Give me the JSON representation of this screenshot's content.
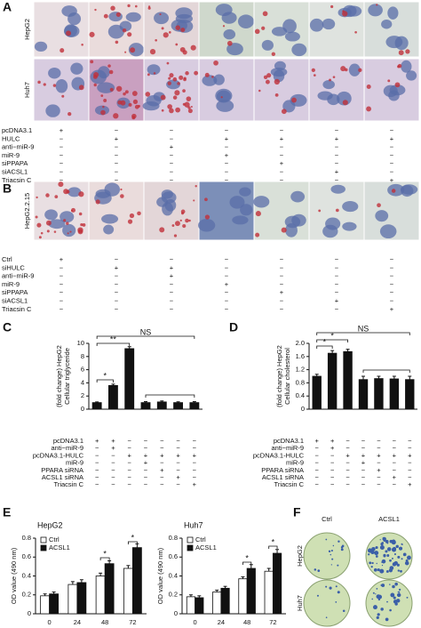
{
  "panels": {
    "A": {
      "label": "A",
      "rows": [
        "HepG2",
        "Huh7"
      ],
      "treatments": [
        {
          "label": "pcDNA3.1",
          "marks": [
            "+",
            "−",
            "−",
            "−",
            "−",
            "−",
            "−"
          ]
        },
        {
          "label": "HULC",
          "marks": [
            "−",
            "+",
            "−",
            "+",
            "+",
            "+",
            "+"
          ]
        },
        {
          "label": "anti−miR-9",
          "marks": [
            "−",
            "−",
            "+",
            "−",
            "−",
            "−",
            "−"
          ]
        },
        {
          "label": "miR-9",
          "marks": [
            "−",
            "−",
            "−",
            "+",
            "−",
            "−",
            "−"
          ]
        },
        {
          "label": "siPPAPA",
          "marks": [
            "−",
            "−",
            "−",
            "−",
            "+",
            "−",
            "−"
          ]
        },
        {
          "label": "siACSL1",
          "marks": [
            "−",
            "−",
            "−",
            "−",
            "−",
            "+",
            "−"
          ]
        },
        {
          "label": "Triacsin C",
          "marks": [
            "−",
            "−",
            "−",
            "−",
            "−",
            "−",
            "+"
          ]
        }
      ]
    },
    "B": {
      "label": "B",
      "rows": [
        "HepG2.2.15"
      ],
      "treatments": [
        {
          "label": "Ctrl",
          "marks": [
            "+",
            "−",
            "−",
            "−",
            "−",
            "−",
            "−"
          ]
        },
        {
          "label": "siHULC",
          "marks": [
            "−",
            "+",
            "+",
            "−",
            "−",
            "−",
            "−"
          ]
        },
        {
          "label": "anti−miR-9",
          "marks": [
            "−",
            "−",
            "+",
            "−",
            "−",
            "−",
            "−"
          ]
        },
        {
          "label": "miR-9",
          "marks": [
            "−",
            "−",
            "−",
            "+",
            "−",
            "−",
            "−"
          ]
        },
        {
          "label": "siPPAPA",
          "marks": [
            "−",
            "−",
            "−",
            "−",
            "+",
            "−",
            "−"
          ]
        },
        {
          "label": "siACSL1",
          "marks": [
            "−",
            "−",
            "−",
            "−",
            "−",
            "+",
            "−"
          ]
        },
        {
          "label": "Triacsin C",
          "marks": [
            "−",
            "−",
            "−",
            "−",
            "−",
            "−",
            "+"
          ]
        }
      ]
    },
    "C": {
      "label": "C"
    },
    "D": {
      "label": "D"
    },
    "E": {
      "label": "E"
    },
    "F": {
      "label": "F",
      "columns": [
        "Ctrl",
        "ACSL1"
      ],
      "rows": [
        "HepG2",
        "Huh7"
      ]
    }
  },
  "chart_data": [
    {
      "type": "bar",
      "ylabel": [
        "Cellular triglyceride",
        "(fold change) HepG2"
      ],
      "values": [
        1,
        3.6,
        9.2,
        1.0,
        1.1,
        1.0,
        1.0
      ],
      "errors": [
        0.1,
        0.2,
        0.3,
        0.15,
        0.15,
        0.12,
        0.15
      ],
      "color": "#111111",
      "ylim": [
        0,
        10
      ],
      "yticks": [
        0,
        2,
        4,
        6,
        8,
        10
      ],
      "annotations": [
        "*",
        "**",
        "NS"
      ],
      "treatments": [
        {
          "label": "pcDNA3.1",
          "marks": [
            "+",
            "+",
            "−",
            "−",
            "−",
            "−",
            "−"
          ]
        },
        {
          "label": "anti−miR-9",
          "marks": [
            "−",
            "+",
            "−",
            "−",
            "−",
            "−",
            "−"
          ]
        },
        {
          "label": "pcDNA3.1-HULC",
          "marks": [
            "−",
            "−",
            "+",
            "+",
            "+",
            "+",
            "+"
          ]
        },
        {
          "label": "miR-9",
          "marks": [
            "−",
            "−",
            "−",
            "+",
            "−",
            "−",
            "−"
          ]
        },
        {
          "label": "PPARA siRNA",
          "marks": [
            "−",
            "−",
            "−",
            "−",
            "+",
            "−",
            "−"
          ]
        },
        {
          "label": "ACSL1 siRNA",
          "marks": [
            "−",
            "−",
            "−",
            "−",
            "−",
            "+",
            "−"
          ]
        },
        {
          "label": "Triacsin C",
          "marks": [
            "−",
            "−",
            "−",
            "−",
            "−",
            "−",
            "+"
          ]
        }
      ]
    },
    {
      "type": "bar",
      "ylabel": [
        "Cellular cholesterol",
        "(fold change) HepG2"
      ],
      "values": [
        1.0,
        1.7,
        1.75,
        0.9,
        0.93,
        0.92,
        0.9
      ],
      "errors": [
        0.06,
        0.08,
        0.07,
        0.1,
        0.07,
        0.08,
        0.1
      ],
      "color": "#111111",
      "ylim": [
        0,
        2
      ],
      "yticks": [
        0,
        0.4,
        0.8,
        1.2,
        1.6,
        {
          "value": 2,
          "label": "2.0"
        }
      ],
      "annotations": [
        "*",
        "*",
        "NS"
      ],
      "treatments": [
        {
          "label": "pcDNA3.1",
          "marks": [
            "+",
            "+",
            "−",
            "−",
            "−",
            "−",
            "−"
          ]
        },
        {
          "label": "anti−miR-9",
          "marks": [
            "−",
            "+",
            "−",
            "−",
            "−",
            "−",
            "−"
          ]
        },
        {
          "label": "pcDNA3.1-HULC",
          "marks": [
            "−",
            "−",
            "+",
            "+",
            "+",
            "+",
            "+"
          ]
        },
        {
          "label": "miR-9",
          "marks": [
            "−",
            "−",
            "−",
            "+",
            "−",
            "−",
            "−"
          ]
        },
        {
          "label": "PPARA siRNA",
          "marks": [
            "−",
            "−",
            "−",
            "−",
            "+",
            "−",
            "−"
          ]
        },
        {
          "label": "ACSL1 siRNA",
          "marks": [
            "−",
            "−",
            "−",
            "−",
            "−",
            "+",
            "−"
          ]
        },
        {
          "label": "Triacsin C",
          "marks": [
            "−",
            "−",
            "−",
            "−",
            "−",
            "−",
            "+"
          ]
        }
      ]
    },
    {
      "type": "bar",
      "title": "HepG2",
      "ylabel": [
        "OD value (490 nm)"
      ],
      "categories": [
        "0",
        "24",
        "48",
        "72"
      ],
      "series": [
        {
          "name": "Ctrl",
          "color": "#ffffff",
          "values": [
            0.19,
            0.31,
            0.4,
            0.48
          ],
          "errors": [
            0.02,
            0.03,
            0.03,
            0.03
          ]
        },
        {
          "name": "ACSL1",
          "color": "#111111",
          "values": [
            0.21,
            0.33,
            0.53,
            0.7
          ],
          "errors": [
            0.02,
            0.03,
            0.03,
            0.04
          ]
        }
      ],
      "ylim": [
        0,
        0.8
      ],
      "yticks": [
        0,
        0.2,
        0.4,
        0.6,
        0.8
      ],
      "annotations": [
        "*",
        "*"
      ]
    },
    {
      "type": "bar",
      "title": "Huh7",
      "ylabel": [
        "OD value (490 nm)"
      ],
      "categories": [
        "0",
        "24",
        "48",
        "72"
      ],
      "series": [
        {
          "name": "Ctrl",
          "color": "#ffffff",
          "values": [
            0.18,
            0.23,
            0.37,
            0.45
          ],
          "errors": [
            0.02,
            0.02,
            0.02,
            0.03
          ]
        },
        {
          "name": "ACSL1",
          "color": "#111111",
          "values": [
            0.17,
            0.27,
            0.48,
            0.64
          ],
          "errors": [
            0.02,
            0.02,
            0.04,
            0.04
          ]
        }
      ],
      "ylim": [
        0,
        0.8
      ],
      "yticks": [
        0,
        0.2,
        0.4,
        0.6,
        0.8
      ],
      "annotations": [
        "*",
        "*"
      ]
    }
  ]
}
